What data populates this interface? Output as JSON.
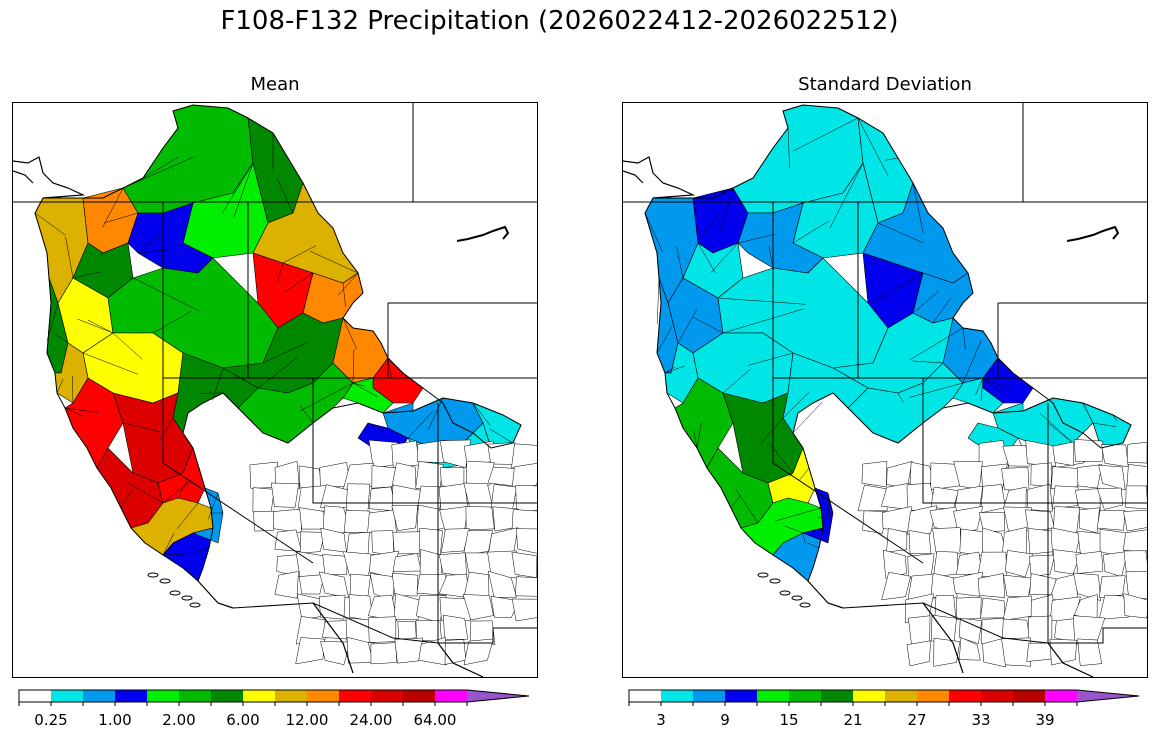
{
  "figure": {
    "title": "F108-F132 Precipitation (2026022412-2026022512)"
  },
  "panels": [
    {
      "title": "Mean",
      "colorbar": {
        "colors": [
          "#ffffff",
          "#00e5e5",
          "#0099ee",
          "#0000ee",
          "#00ee00",
          "#00bb00",
          "#008800",
          "#ffff00",
          "#ddb100",
          "#ff8800",
          "#ff0000",
          "#dd0000",
          "#bb0000",
          "#ff00ff",
          "#9955cc"
        ],
        "extend": "max",
        "tick_labels": [
          "0.25",
          "1.00",
          "2.00",
          "6.00",
          "12.00",
          "24.00",
          "64.00"
        ]
      }
    },
    {
      "title": "Standard Deviation",
      "colorbar": {
        "colors": [
          "#ffffff",
          "#00e5e5",
          "#0099ee",
          "#0000ee",
          "#00ee00",
          "#00bb00",
          "#008800",
          "#ffff00",
          "#ddb100",
          "#ff8800",
          "#ff0000",
          "#dd0000",
          "#bb0000",
          "#ff00ff",
          "#9955cc"
        ],
        "extend": "max",
        "tick_labels": [
          "3",
          "9",
          "15",
          "21",
          "27",
          "33",
          "39"
        ]
      }
    }
  ]
}
